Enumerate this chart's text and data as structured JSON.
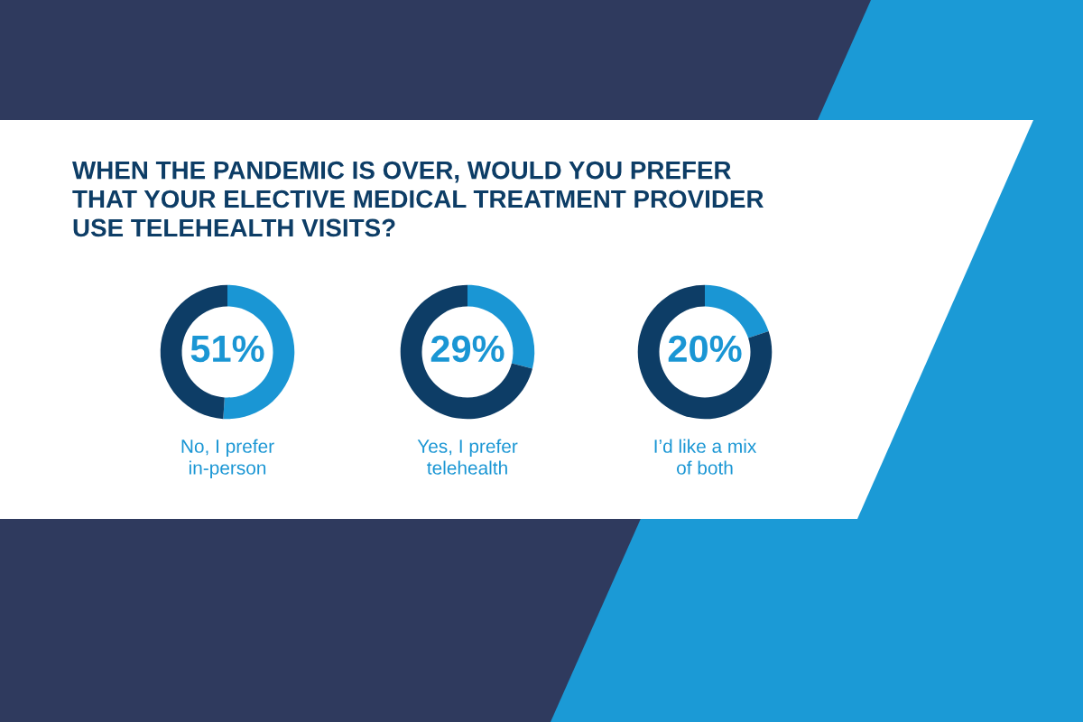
{
  "chart_data": [
    {
      "type": "donut",
      "title": "WHEN THE PANDEMIC IS OVER, WOULD YOU PREFER\nTHAT YOUR ELECTIVE MEDICAL TREATMENT PROVIDER\nUSE TELEHEALTH VISITS?",
      "xlabel": "No, I prefer\nin-person",
      "categories": [
        null,
        null
      ],
      "values": [
        51,
        49
      ],
      "colors": [
        "#1a96d4",
        "#0d3d66"
      ],
      "value_labels": [
        "51%",
        null
      ]
    },
    {
      "type": "donut",
      "xlabel": "Yes, I prefer\ntelehealth",
      "categories": [
        null,
        null
      ],
      "values": [
        29,
        71
      ],
      "colors": [
        "#1a96d4",
        "#0d3d66"
      ],
      "value_labels": [
        "29%",
        null
      ]
    },
    {
      "type": "donut",
      "xlabel": "I’d like a mix\nof both",
      "categories": [
        null,
        null
      ],
      "values": [
        20,
        80
      ],
      "colors": [
        "#1a96d4",
        "#0d3d66"
      ],
      "value_labels": [
        "20%",
        null
      ]
    }
  ]
}
